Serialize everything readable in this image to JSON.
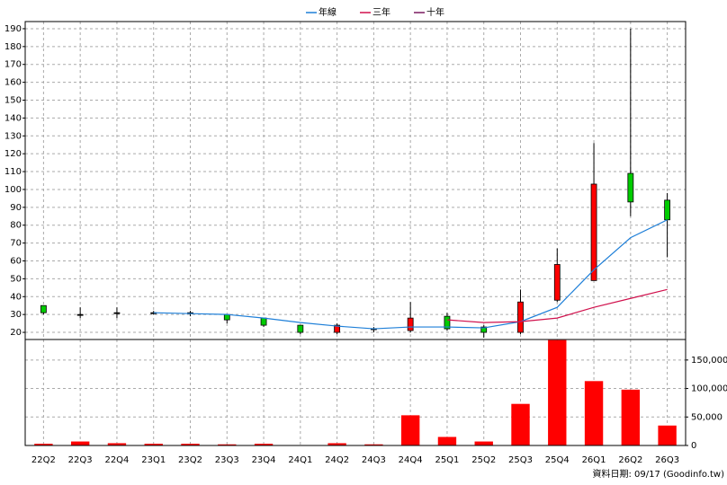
{
  "chart_data": {
    "type": "candlestick",
    "categories": [
      "22Q2",
      "22Q3",
      "22Q4",
      "23Q1",
      "23Q2",
      "23Q3",
      "23Q4",
      "24Q1",
      "24Q2",
      "24Q3",
      "24Q4",
      "25Q1",
      "25Q2",
      "25Q3",
      "25Q4",
      "26Q1",
      "26Q2",
      "26Q3"
    ],
    "open": [
      35,
      30,
      31,
      31,
      31,
      30,
      28,
      24,
      20,
      22,
      21,
      29,
      23,
      20,
      38,
      49,
      109,
      94
    ],
    "high": [
      35,
      34,
      34,
      32,
      32,
      30,
      28,
      24,
      25,
      23,
      37,
      31,
      24,
      44,
      67,
      126,
      190,
      98
    ],
    "low": [
      30,
      28,
      28,
      30,
      29,
      25,
      23,
      19,
      19,
      20,
      20,
      21,
      17,
      19,
      37,
      49,
      85,
      62
    ],
    "close": [
      31,
      30,
      31,
      31,
      31,
      27,
      24,
      20,
      24,
      22,
      28,
      22,
      20,
      37,
      58,
      103,
      93,
      83
    ],
    "up_color": "#ff0000",
    "down_color": "#00cc00",
    "series": [
      {
        "name": "年線",
        "color": "#1e7fd8",
        "values": [
          null,
          null,
          null,
          31,
          30.5,
          30,
          28,
          25.5,
          23.5,
          22,
          23,
          23,
          22.5,
          26,
          34,
          55,
          73,
          83
        ]
      },
      {
        "name": "三年",
        "color": "#d0104c",
        "values": [
          null,
          null,
          null,
          null,
          null,
          null,
          null,
          null,
          null,
          null,
          null,
          27,
          25.5,
          26,
          28,
          34,
          39,
          44
        ]
      },
      {
        "name": "十年",
        "color": "#7a1a60",
        "values": [
          null,
          null,
          null,
          null,
          null,
          null,
          null,
          null,
          null,
          null,
          null,
          null,
          null,
          null,
          null,
          null,
          null,
          null
        ]
      }
    ],
    "ylim": [
      16,
      194
    ],
    "yticks": [
      20,
      30,
      40,
      50,
      60,
      70,
      80,
      90,
      100,
      110,
      120,
      130,
      140,
      150,
      160,
      170,
      180,
      190
    ],
    "volume": {
      "type": "bar",
      "color": "#ff0000",
      "values": [
        3000,
        7000,
        4000,
        3000,
        3000,
        2000,
        3000,
        500,
        4000,
        2000,
        53000,
        15000,
        7000,
        73000,
        185000,
        113000,
        98000,
        35000
      ],
      "ylim": [
        0,
        186000
      ],
      "yticks": [
        0,
        {
          "value": 50000,
          "label": "50,000"
        },
        {
          "value": 100000,
          "label": "100,000"
        },
        {
          "value": 150000,
          "label": "150,000"
        }
      ]
    },
    "grid": true,
    "legend": "top",
    "footnote": "資料日期: 09/17 (Goodinfo.tw)"
  }
}
